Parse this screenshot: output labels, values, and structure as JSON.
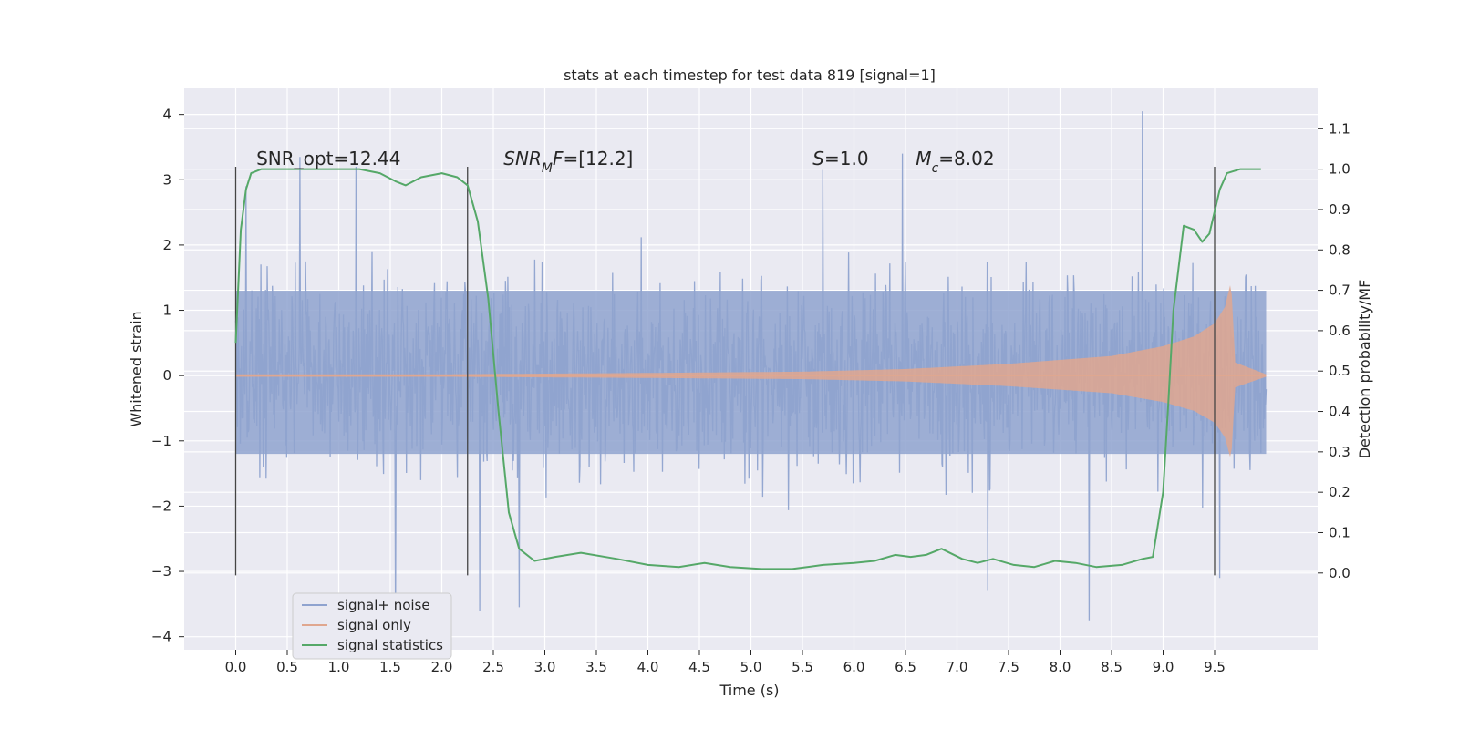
{
  "chart_data": {
    "type": "line",
    "title": "stats at each timestep for test data 819 [signal=1]",
    "xlabel": "Time (s)",
    "ylabel": "Whitened strain",
    "y2label": "Detection probability/MF",
    "xlim": [
      -0.5,
      10.5
    ],
    "ylim": [
      -4.2,
      4.4
    ],
    "y2lim": [
      -0.19,
      1.2
    ],
    "x_ticks": [
      0.0,
      0.5,
      1.0,
      1.5,
      2.0,
      2.5,
      3.0,
      3.5,
      4.0,
      4.5,
      5.0,
      5.5,
      6.0,
      6.5,
      7.0,
      7.5,
      8.0,
      8.5,
      9.0,
      9.5
    ],
    "x_tick_labels": [
      "0.0",
      "0.5",
      "1.0",
      "1.5",
      "2.0",
      "2.5",
      "3.0",
      "3.5",
      "4.0",
      "4.5",
      "5.0",
      "5.5",
      "6.0",
      "6.5",
      "7.0",
      "7.5",
      "8.0",
      "8.5",
      "9.0",
      "9.5"
    ],
    "y_ticks": [
      4,
      3,
      2,
      1,
      0,
      -1,
      -2,
      -3,
      -4
    ],
    "y_tick_labels": [
      "4",
      "3",
      "2",
      "1",
      "0",
      "−1",
      "−2",
      "−3",
      "−4"
    ],
    "y2_ticks": [
      1.1,
      1.0,
      0.9,
      0.8,
      0.7,
      0.6,
      0.5,
      0.4,
      0.3,
      0.2,
      0.1,
      0.0
    ],
    "y2_tick_labels": [
      "1.1",
      "1.0",
      "0.9",
      "0.8",
      "0.7",
      "0.6",
      "0.5",
      "0.4",
      "0.3",
      "0.2",
      "0.1",
      "0.0"
    ],
    "grid": true,
    "legend": {
      "position": "lower-left",
      "entries": [
        {
          "label": "signal+ noise",
          "color": "#8fa3cf"
        },
        {
          "label": "signal only",
          "color": "#e0a78f"
        },
        {
          "label": "signal statistics",
          "color": "#55a868"
        }
      ]
    },
    "series": [
      {
        "name": "signal+ noise",
        "axis": "left",
        "color": "#8fa3cf",
        "x_range": [
          0.0,
          10.0
        ],
        "typical_band": [
          -2.0,
          2.5
        ],
        "extremes": [
          {
            "x": 0.1,
            "y": 2.9
          },
          {
            "x": 0.62,
            "y": 3.35
          },
          {
            "x": 1.17,
            "y": 3.2
          },
          {
            "x": 1.55,
            "y": -3.75
          },
          {
            "x": 2.37,
            "y": -3.6
          },
          {
            "x": 2.75,
            "y": -3.55
          },
          {
            "x": 5.7,
            "y": 3.15
          },
          {
            "x": 6.47,
            "y": 3.4
          },
          {
            "x": 7.3,
            "y": -3.3
          },
          {
            "x": 8.28,
            "y": -3.75
          },
          {
            "x": 8.8,
            "y": 4.05
          },
          {
            "x": 9.55,
            "y": -3.1
          }
        ]
      },
      {
        "name": "signal only",
        "axis": "left",
        "color": "#e0a78f",
        "description_free": true,
        "envelope": [
          [
            0.0,
            0.02
          ],
          [
            2.0,
            0.02
          ],
          [
            4.0,
            0.04
          ],
          [
            5.5,
            0.06
          ],
          [
            6.5,
            0.1
          ],
          [
            7.5,
            0.18
          ],
          [
            8.5,
            0.3
          ],
          [
            9.0,
            0.45
          ],
          [
            9.3,
            0.6
          ],
          [
            9.5,
            0.8
          ],
          [
            9.6,
            1.05
          ],
          [
            9.66,
            1.45
          ],
          [
            9.7,
            0.2
          ],
          [
            10.0,
            0.02
          ]
        ]
      },
      {
        "name": "signal statistics",
        "axis": "right",
        "color": "#55a868",
        "x": [
          0.0,
          0.05,
          0.1,
          0.15,
          0.25,
          0.5,
          0.8,
          1.2,
          1.4,
          1.55,
          1.65,
          1.8,
          2.0,
          2.15,
          2.25,
          2.35,
          2.45,
          2.55,
          2.65,
          2.75,
          2.9,
          3.1,
          3.35,
          3.7,
          4.0,
          4.3,
          4.55,
          4.8,
          5.1,
          5.4,
          5.7,
          6.0,
          6.2,
          6.4,
          6.55,
          6.7,
          6.85,
          7.05,
          7.2,
          7.35,
          7.55,
          7.75,
          7.95,
          8.15,
          8.35,
          8.6,
          8.8,
          8.9,
          9.0,
          9.05,
          9.1,
          9.2,
          9.3,
          9.38,
          9.45,
          9.55,
          9.62,
          9.75,
          9.95
        ],
        "y": [
          0.57,
          0.85,
          0.95,
          0.99,
          1.0,
          1.0,
          1.0,
          1.0,
          0.99,
          0.97,
          0.96,
          0.98,
          0.99,
          0.98,
          0.96,
          0.87,
          0.68,
          0.4,
          0.15,
          0.06,
          0.03,
          0.04,
          0.05,
          0.035,
          0.02,
          0.015,
          0.025,
          0.015,
          0.01,
          0.01,
          0.02,
          0.025,
          0.03,
          0.045,
          0.04,
          0.045,
          0.06,
          0.035,
          0.025,
          0.035,
          0.02,
          0.015,
          0.03,
          0.025,
          0.015,
          0.02,
          0.035,
          0.04,
          0.2,
          0.42,
          0.65,
          0.86,
          0.85,
          0.82,
          0.84,
          0.95,
          0.99,
          1.0,
          1.0
        ]
      }
    ],
    "vertical_lines": [
      {
        "x": 0.0,
        "y_range": [
          -3.06,
          3.2
        ]
      },
      {
        "x": 2.25,
        "y_range": [
          -3.06,
          3.2
        ]
      },
      {
        "x": 9.5,
        "y_range": [
          -3.06,
          3.2
        ]
      }
    ],
    "annotations": [
      {
        "id": "snr_opt",
        "x": 0.2,
        "y": 3.2,
        "text": "SNR_opt=12.44"
      },
      {
        "id": "snr_mf",
        "x": 2.6,
        "y": 3.2,
        "parts": [
          "SNR",
          "M",
          "F=[12.2]"
        ]
      },
      {
        "id": "s",
        "x": 5.6,
        "y": 3.2,
        "parts": [
          "S",
          "=1.0"
        ]
      },
      {
        "id": "mc",
        "x": 6.6,
        "y": 3.2,
        "parts": [
          "M",
          "c",
          "=8.02"
        ]
      }
    ]
  }
}
